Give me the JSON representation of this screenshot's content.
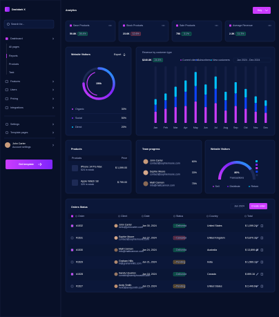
{
  "sidebar": {
    "logo": "Dashdark X",
    "search": "Search for...",
    "menu": [
      "Dashboard",
      "All pages",
      "Reports",
      "Products",
      "Task",
      "Features",
      "Users",
      "Pricing",
      "Integrations"
    ],
    "bottom": [
      "Settings",
      "Template pages"
    ],
    "user": {
      "name": "John Carter",
      "role": "Account settings"
    },
    "button": "Get template"
  },
  "header": {
    "title": "Analytics",
    "button": "Key"
  },
  "stats": [
    {
      "label": "Save Products",
      "value": "50.8K",
      "change": "28.4%",
      "badge_color": "#14ca74"
    },
    {
      "label": "Stock Products",
      "value": "23.6K",
      "change": "12.6%",
      "badge_color": "#ff5a65"
    },
    {
      "label": "Sale Products",
      "value": "756",
      "change": "3.1%",
      "badge_color": "#14ca74"
    },
    {
      "label": "Average Revenue",
      "value": "2.3K",
      "change": "11.3%",
      "badge_color": "#14ca74"
    }
  ],
  "visitors": {
    "title": "Website Visitors",
    "action": "Export",
    "center": "150k",
    "legend": [
      {
        "name": "Organic",
        "value": "30%",
        "color": "#cb3cff"
      },
      {
        "name": "Social",
        "value": "50%",
        "color": "#7f25fb"
      },
      {
        "name": "Direct",
        "value": "20%",
        "color": "#00c2ff"
      }
    ]
  },
  "chart_data": {
    "type": "bar",
    "stacked": true,
    "title": "Revenue by customer type",
    "total": "$240.8K",
    "change": "24.6%",
    "date": "Jan 2024 - Dec 2024",
    "categories": [
      "Jan",
      "Feb",
      "Mar",
      "Apr",
      "May",
      "Jun",
      "Jul",
      "Aug",
      "Sep",
      "Oct",
      "Nov",
      "Dec"
    ],
    "series": [
      {
        "name": "Current clients",
        "color": "#cb3cff",
        "values": [
          20,
          25,
          28,
          30,
          38,
          28,
          35,
          22,
          30,
          25,
          20,
          18
        ]
      },
      {
        "name": "Subscribers",
        "color": "#0e43fb",
        "values": [
          12,
          15,
          18,
          25,
          27,
          22,
          25,
          18,
          22,
          20,
          15,
          12
        ]
      },
      {
        "name": "New customers",
        "color": "#00c2ff",
        "values": [
          10,
          12,
          18,
          20,
          25,
          18,
          22,
          15,
          20,
          15,
          12,
          10
        ]
      }
    ],
    "ylim": [
      0,
      100
    ]
  },
  "products": {
    "title": "Products",
    "columns": [
      "Products",
      "Price"
    ],
    "rows": [
      {
        "name": "iPhone 14 Pro Max",
        "stock": "524 in stock",
        "price": "$ 1,099.00"
      },
      {
        "name": "Apple Watch S8",
        "stock": "320 in stock",
        "price": "$ 799.00"
      }
    ]
  },
  "team": {
    "title": "Team progress",
    "members": [
      {
        "name": "John Carter",
        "email": "contact@sophiemoore.com",
        "value": "60%"
      },
      {
        "name": "Sophie Moore",
        "email": "contact@sophiemoore.com",
        "value": "33%"
      },
      {
        "name": "Matt Cannon",
        "email": "info@mattcannon.com",
        "value": "75%"
      }
    ]
  },
  "visitors2": {
    "title": "Website Visitors",
    "value": "80%",
    "caption": "Transactions",
    "legend": [
      {
        "name": "Sell",
        "color": "#cb3cff"
      },
      {
        "name": "Distribute",
        "color": "#7f25fb"
      },
      {
        "name": "Return",
        "color": "#00c2ff"
      }
    ]
  },
  "orders": {
    "title": "Orders Status",
    "date": "Jan 2024",
    "button": "Create order",
    "columns": [
      "Order",
      "Client",
      "Date",
      "Status",
      "Country",
      "Total"
    ],
    "rows": [
      {
        "order": "#1532",
        "client": "John Carter",
        "email": "hello@johncarter.com",
        "date": "Jan 30, 2024",
        "status": "Delivered",
        "status_color": "#14ca74",
        "country": "United States",
        "total": "$ 1,099.24"
      },
      {
        "order": "#1531",
        "client": "Sophie Moore",
        "email": "contact@sophiemoore.com",
        "date": "Jan 27, 2024",
        "status": "Canceled",
        "status_color": "#ff5a65",
        "country": "United Kingdom",
        "total": "$ 5,870.32"
      },
      {
        "order": "#1530",
        "client": "Matt Cannon",
        "email": "info@mattcannon.com",
        "date": "Jan 24, 2024",
        "status": "Delivered",
        "status_color": "#14ca74",
        "country": "Australia",
        "total": "$ 13,899.48"
      },
      {
        "order": "#1529",
        "client": "Graham Hills",
        "email": "hi@grahamhills.com",
        "date": "Jan 21, 2024",
        "status": "Pending",
        "status_color": "#fdb52a",
        "country": "India",
        "total": "$ 1,569.12"
      },
      {
        "order": "#1528",
        "client": "Sandy Houston",
        "email": "contact@sandyhouston.com",
        "date": "Jan 18, 2024",
        "status": "Delivered",
        "status_color": "#14ca74",
        "country": "Canada",
        "total": "$ 899.16"
      },
      {
        "order": "#1527",
        "client": "Andy Smith",
        "email": "hello@andysmith.com",
        "date": "Jan 15, 2024",
        "status": "Pending",
        "status_color": "#fdb52a",
        "country": "United States",
        "total": "$ 2,449.64"
      }
    ]
  }
}
